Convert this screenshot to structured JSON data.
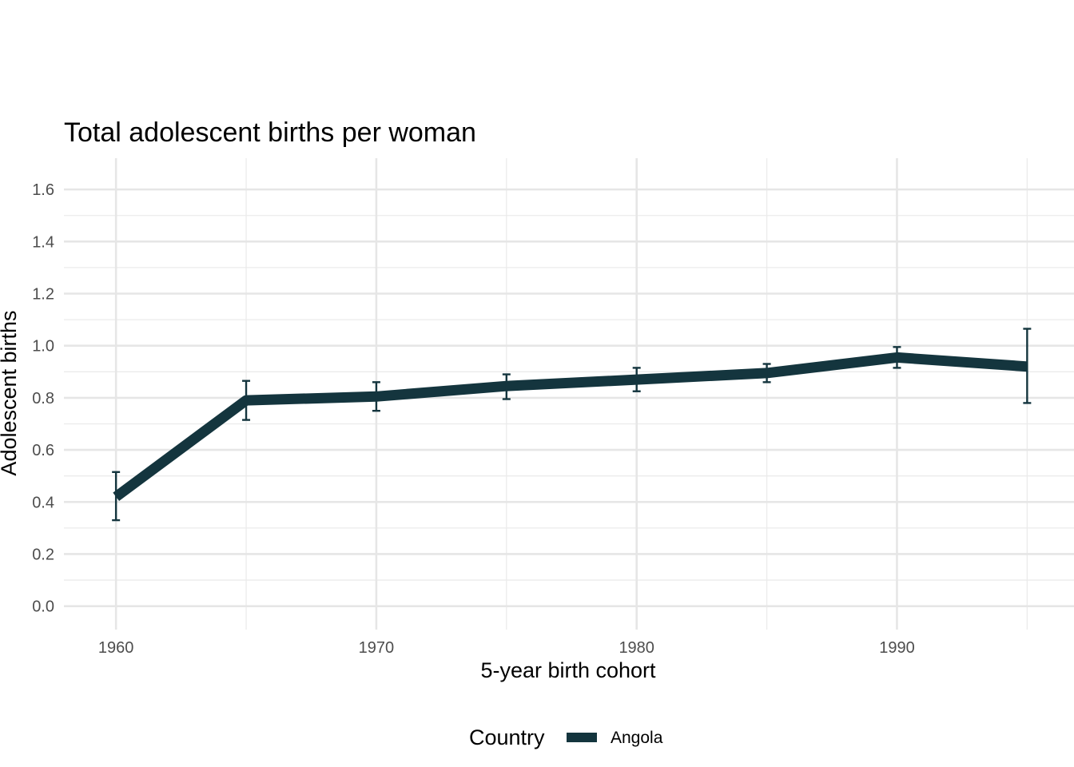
{
  "chart_data": {
    "type": "line",
    "title": "Total adolescent births per woman",
    "xlabel": "5-year birth cohort",
    "ylabel": "Adolescent births",
    "xlim": [
      1958,
      1996.8
    ],
    "ylim": [
      -0.09,
      1.72
    ],
    "x_ticks": [
      1960,
      1970,
      1980,
      1990
    ],
    "x_tick_labels": [
      "1960",
      "1970",
      "1980",
      "1990"
    ],
    "y_ticks": [
      0.0,
      0.2,
      0.4,
      0.6,
      0.8,
      1.0,
      1.2,
      1.4,
      1.6
    ],
    "y_tick_labels": [
      "0.0",
      "0.2",
      "0.4",
      "0.6",
      "0.8",
      "1.0",
      "1.2",
      "1.4",
      "1.6"
    ],
    "grid": true,
    "legend": {
      "title": "Country",
      "position": "bottom"
    },
    "series": [
      {
        "name": "Angola",
        "color": "#14353e",
        "x": [
          1960,
          1965,
          1970,
          1975,
          1980,
          1985,
          1990,
          1995
        ],
        "y": [
          0.42,
          0.79,
          0.805,
          0.845,
          0.87,
          0.895,
          0.955,
          0.92
        ],
        "lower": [
          0.33,
          0.715,
          0.75,
          0.795,
          0.825,
          0.86,
          0.915,
          0.78
        ],
        "upper": [
          0.515,
          0.865,
          0.86,
          0.89,
          0.915,
          0.93,
          0.995,
          1.065
        ]
      }
    ]
  }
}
